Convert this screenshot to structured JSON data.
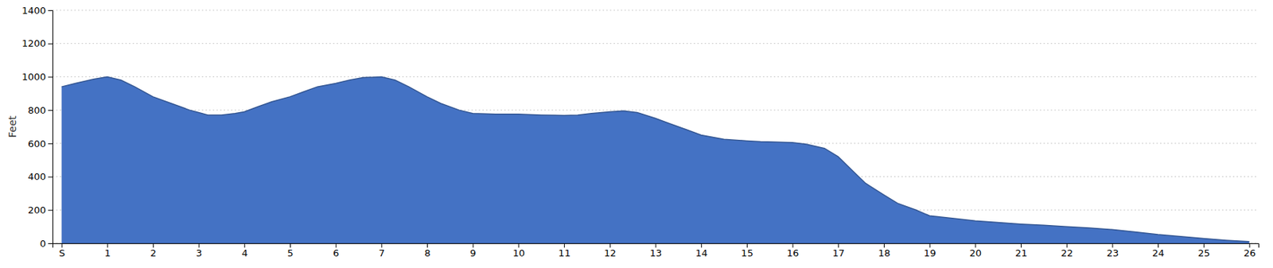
{
  "chart_data": {
    "type": "area",
    "ylabel": "Feet",
    "x": [
      0,
      0.3,
      0.7,
      1.0,
      1.3,
      1.6,
      2.0,
      2.4,
      2.8,
      3.0,
      3.2,
      3.5,
      3.8,
      4.0,
      4.3,
      4.6,
      5.0,
      5.3,
      5.6,
      6.0,
      6.3,
      6.6,
      7.0,
      7.3,
      7.6,
      8.0,
      8.3,
      8.7,
      9.0,
      9.5,
      10.0,
      10.5,
      11.0,
      11.3,
      11.6,
      12.0,
      12.3,
      12.6,
      13.0,
      13.3,
      13.7,
      14.0,
      14.5,
      15.0,
      15.3,
      15.6,
      16.0,
      16.3,
      16.7,
      17.0,
      17.3,
      17.6,
      18.0,
      18.3,
      18.7,
      19.0,
      19.5,
      20.0,
      20.5,
      21.0,
      21.5,
      22.0,
      22.5,
      23.0,
      23.5,
      24.0,
      24.5,
      25.0,
      25.5,
      26.0
    ],
    "values": [
      940,
      960,
      985,
      1000,
      980,
      940,
      880,
      840,
      800,
      785,
      770,
      770,
      780,
      790,
      820,
      850,
      880,
      910,
      940,
      960,
      980,
      995,
      1000,
      980,
      940,
      880,
      840,
      800,
      780,
      775,
      775,
      770,
      768,
      770,
      780,
      790,
      795,
      785,
      750,
      720,
      680,
      650,
      625,
      615,
      610,
      608,
      605,
      595,
      570,
      520,
      440,
      360,
      290,
      240,
      200,
      165,
      150,
      135,
      125,
      115,
      108,
      100,
      92,
      82,
      68,
      52,
      40,
      28,
      18,
      10
    ],
    "color": "#4472c4",
    "xlim": [
      -0.2,
      26.2
    ],
    "xticks": [
      {
        "value": 0,
        "label": "S"
      },
      1,
      2,
      3,
      4,
      5,
      6,
      7,
      8,
      9,
      10,
      11,
      12,
      13,
      14,
      15,
      16,
      17,
      18,
      19,
      20,
      21,
      22,
      23,
      24,
      25,
      26
    ],
    "ylim": [
      0,
      1400
    ],
    "yticks": [
      0,
      200,
      400,
      600,
      800,
      1000,
      1200,
      1400
    ],
    "grid": "y"
  }
}
